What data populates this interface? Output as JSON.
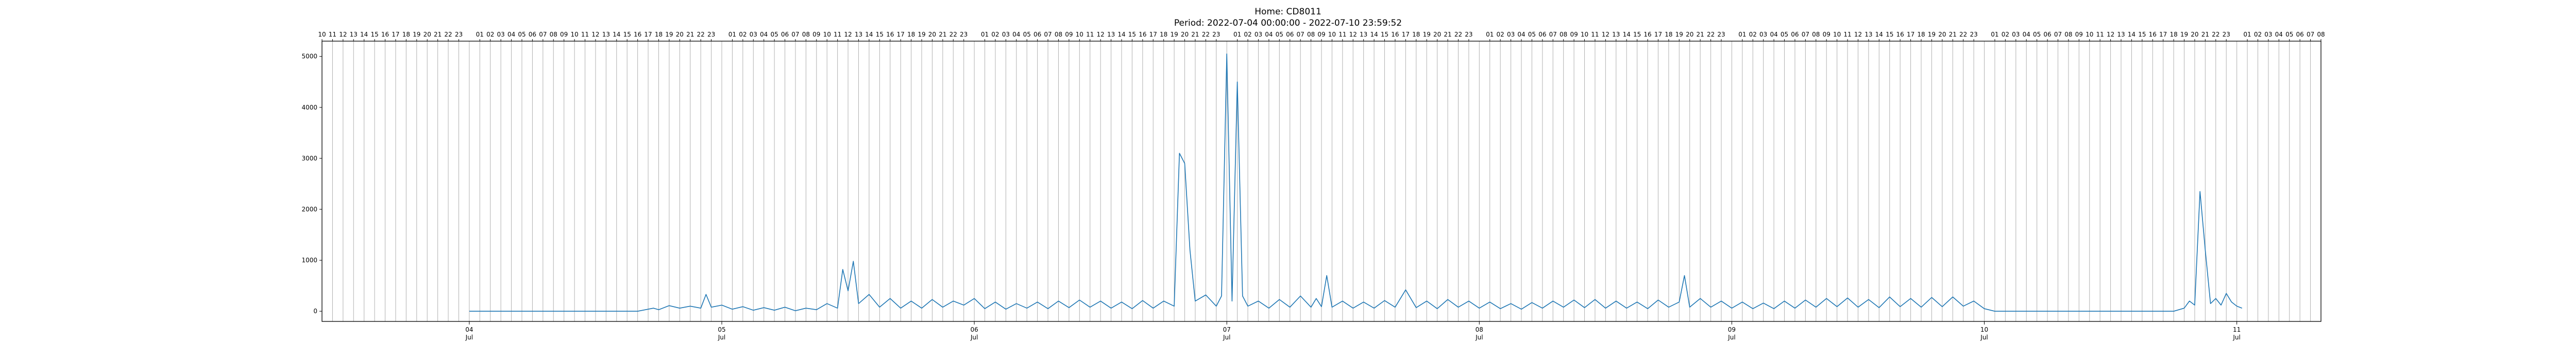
{
  "chart_data": {
    "type": "line",
    "title": "Home: CD8011",
    "subtitle": "Period: 2022-07-04 00:00:00 - 2022-07-10 23:59:52",
    "xlabel": "",
    "ylabel": "",
    "ylim": [
      -200,
      5300
    ],
    "yticks": [
      0,
      1000,
      2000,
      3000,
      4000,
      5000
    ],
    "xlim": [
      "2022-07-03 10:00",
      "2022-07-11 08:00"
    ],
    "x_major_ticks": [
      {
        "date": "2022-07-04",
        "day": "04",
        "month": "Jul"
      },
      {
        "date": "2022-07-05",
        "day": "05",
        "month": "Jul"
      },
      {
        "date": "2022-07-06",
        "day": "06",
        "month": "Jul"
      },
      {
        "date": "2022-07-07",
        "day": "07",
        "month": "Jul"
      },
      {
        "date": "2022-07-08",
        "day": "08",
        "month": "Jul"
      },
      {
        "date": "2022-07-09",
        "day": "09",
        "month": "Jul"
      },
      {
        "date": "2022-07-10",
        "day": "10",
        "month": "Jul"
      },
      {
        "date": "2022-07-11",
        "day": "11",
        "month": "Jul"
      }
    ],
    "top_hour_labels": [
      "16",
      "17",
      "18",
      "19",
      "20",
      "21",
      "22",
      "23",
      "01",
      "02",
      "03",
      "04",
      "05",
      "06",
      "07",
      "08",
      "09",
      "10",
      "11",
      "12",
      "13",
      "14",
      "15",
      "16",
      "17",
      "18",
      "19",
      "20",
      "21",
      "22",
      "23"
    ],
    "grid": "vertical hourly lines",
    "legend": "none",
    "colors": {
      "series": "#1f77b4",
      "grid": "#b0b0b0",
      "axis": "#000000"
    },
    "series": [
      {
        "points": [
          [
            "2022-07-04 00:00",
            0
          ],
          [
            "2022-07-04 06:00",
            0
          ],
          [
            "2022-07-04 12:00",
            0
          ],
          [
            "2022-07-04 16:00",
            0
          ],
          [
            "2022-07-04 17:00",
            40
          ],
          [
            "2022-07-04 17:30",
            60
          ],
          [
            "2022-07-04 18:00",
            30
          ],
          [
            "2022-07-04 19:00",
            110
          ],
          [
            "2022-07-04 20:00",
            60
          ],
          [
            "2022-07-04 21:00",
            100
          ],
          [
            "2022-07-04 22:00",
            60
          ],
          [
            "2022-07-04 22:30",
            330
          ],
          [
            "2022-07-04 23:00",
            80
          ],
          [
            "2022-07-05 00:00",
            120
          ],
          [
            "2022-07-05 01:00",
            40
          ],
          [
            "2022-07-05 02:00",
            90
          ],
          [
            "2022-07-05 03:00",
            20
          ],
          [
            "2022-07-05 04:00",
            70
          ],
          [
            "2022-07-05 05:00",
            20
          ],
          [
            "2022-07-05 06:00",
            80
          ],
          [
            "2022-07-05 07:00",
            10
          ],
          [
            "2022-07-05 08:00",
            60
          ],
          [
            "2022-07-05 09:00",
            30
          ],
          [
            "2022-07-05 10:00",
            150
          ],
          [
            "2022-07-05 11:00",
            60
          ],
          [
            "2022-07-05 11:30",
            820
          ],
          [
            "2022-07-05 12:00",
            400
          ],
          [
            "2022-07-05 12:30",
            980
          ],
          [
            "2022-07-05 13:00",
            150
          ],
          [
            "2022-07-05 14:00",
            330
          ],
          [
            "2022-07-05 15:00",
            80
          ],
          [
            "2022-07-05 16:00",
            250
          ],
          [
            "2022-07-05 17:00",
            60
          ],
          [
            "2022-07-05 18:00",
            200
          ],
          [
            "2022-07-05 19:00",
            60
          ],
          [
            "2022-07-05 20:00",
            230
          ],
          [
            "2022-07-05 21:00",
            80
          ],
          [
            "2022-07-05 22:00",
            200
          ],
          [
            "2022-07-05 23:00",
            120
          ],
          [
            "2022-07-06 00:00",
            250
          ],
          [
            "2022-07-06 01:00",
            50
          ],
          [
            "2022-07-06 02:00",
            180
          ],
          [
            "2022-07-06 03:00",
            40
          ],
          [
            "2022-07-06 04:00",
            150
          ],
          [
            "2022-07-06 05:00",
            60
          ],
          [
            "2022-07-06 06:00",
            180
          ],
          [
            "2022-07-06 07:00",
            50
          ],
          [
            "2022-07-06 08:00",
            200
          ],
          [
            "2022-07-06 09:00",
            70
          ],
          [
            "2022-07-06 10:00",
            220
          ],
          [
            "2022-07-06 11:00",
            80
          ],
          [
            "2022-07-06 12:00",
            200
          ],
          [
            "2022-07-06 13:00",
            60
          ],
          [
            "2022-07-06 14:00",
            180
          ],
          [
            "2022-07-06 15:00",
            50
          ],
          [
            "2022-07-06 16:00",
            210
          ],
          [
            "2022-07-06 17:00",
            60
          ],
          [
            "2022-07-06 18:00",
            200
          ],
          [
            "2022-07-06 19:00",
            100
          ],
          [
            "2022-07-06 19:30",
            3100
          ],
          [
            "2022-07-06 20:00",
            2900
          ],
          [
            "2022-07-06 20:30",
            1200
          ],
          [
            "2022-07-06 21:00",
            200
          ],
          [
            "2022-07-06 22:00",
            320
          ],
          [
            "2022-07-06 23:00",
            100
          ],
          [
            "2022-07-06 23:30",
            300
          ],
          [
            "2022-07-07 00:00",
            5050
          ],
          [
            "2022-07-07 00:30",
            200
          ],
          [
            "2022-07-07 01:00",
            4500
          ],
          [
            "2022-07-07 01:30",
            300
          ],
          [
            "2022-07-07 02:00",
            100
          ],
          [
            "2022-07-07 03:00",
            200
          ],
          [
            "2022-07-07 04:00",
            60
          ],
          [
            "2022-07-07 05:00",
            230
          ],
          [
            "2022-07-07 06:00",
            80
          ],
          [
            "2022-07-07 07:00",
            300
          ],
          [
            "2022-07-07 08:00",
            80
          ],
          [
            "2022-07-07 08:30",
            250
          ],
          [
            "2022-07-07 09:00",
            90
          ],
          [
            "2022-07-07 09:30",
            700
          ],
          [
            "2022-07-07 10:00",
            80
          ],
          [
            "2022-07-07 11:00",
            200
          ],
          [
            "2022-07-07 12:00",
            60
          ],
          [
            "2022-07-07 13:00",
            180
          ],
          [
            "2022-07-07 14:00",
            60
          ],
          [
            "2022-07-07 15:00",
            210
          ],
          [
            "2022-07-07 16:00",
            80
          ],
          [
            "2022-07-07 17:00",
            420
          ],
          [
            "2022-07-07 18:00",
            70
          ],
          [
            "2022-07-07 19:00",
            200
          ],
          [
            "2022-07-07 20:00",
            50
          ],
          [
            "2022-07-07 21:00",
            230
          ],
          [
            "2022-07-07 22:00",
            80
          ],
          [
            "2022-07-07 23:00",
            200
          ],
          [
            "2022-07-08 00:00",
            60
          ],
          [
            "2022-07-08 01:00",
            180
          ],
          [
            "2022-07-08 02:00",
            50
          ],
          [
            "2022-07-08 03:00",
            150
          ],
          [
            "2022-07-08 04:00",
            40
          ],
          [
            "2022-07-08 05:00",
            170
          ],
          [
            "2022-07-08 06:00",
            60
          ],
          [
            "2022-07-08 07:00",
            200
          ],
          [
            "2022-07-08 08:00",
            80
          ],
          [
            "2022-07-08 09:00",
            220
          ],
          [
            "2022-07-08 10:00",
            70
          ],
          [
            "2022-07-08 11:00",
            230
          ],
          [
            "2022-07-08 12:00",
            60
          ],
          [
            "2022-07-08 13:00",
            200
          ],
          [
            "2022-07-08 14:00",
            60
          ],
          [
            "2022-07-08 15:00",
            180
          ],
          [
            "2022-07-08 16:00",
            50
          ],
          [
            "2022-07-08 17:00",
            220
          ],
          [
            "2022-07-08 18:00",
            80
          ],
          [
            "2022-07-08 19:00",
            180
          ],
          [
            "2022-07-08 19:30",
            700
          ],
          [
            "2022-07-08 20:00",
            80
          ],
          [
            "2022-07-08 21:00",
            250
          ],
          [
            "2022-07-08 22:00",
            80
          ],
          [
            "2022-07-08 23:00",
            200
          ],
          [
            "2022-07-09 00:00",
            60
          ],
          [
            "2022-07-09 01:00",
            180
          ],
          [
            "2022-07-09 02:00",
            50
          ],
          [
            "2022-07-09 03:00",
            160
          ],
          [
            "2022-07-09 04:00",
            50
          ],
          [
            "2022-07-09 05:00",
            200
          ],
          [
            "2022-07-09 06:00",
            60
          ],
          [
            "2022-07-09 07:00",
            220
          ],
          [
            "2022-07-09 08:00",
            80
          ],
          [
            "2022-07-09 09:00",
            250
          ],
          [
            "2022-07-09 10:00",
            90
          ],
          [
            "2022-07-09 11:00",
            260
          ],
          [
            "2022-07-09 12:00",
            80
          ],
          [
            "2022-07-09 13:00",
            230
          ],
          [
            "2022-07-09 14:00",
            70
          ],
          [
            "2022-07-09 15:00",
            280
          ],
          [
            "2022-07-09 16:00",
            90
          ],
          [
            "2022-07-09 17:00",
            250
          ],
          [
            "2022-07-09 18:00",
            80
          ],
          [
            "2022-07-09 19:00",
            270
          ],
          [
            "2022-07-09 20:00",
            90
          ],
          [
            "2022-07-09 21:00",
            280
          ],
          [
            "2022-07-09 22:00",
            100
          ],
          [
            "2022-07-09 23:00",
            200
          ],
          [
            "2022-07-10 00:00",
            50
          ],
          [
            "2022-07-10 01:00",
            0
          ],
          [
            "2022-07-10 06:00",
            0
          ],
          [
            "2022-07-10 12:00",
            0
          ],
          [
            "2022-07-10 18:00",
            0
          ],
          [
            "2022-07-10 19:00",
            60
          ],
          [
            "2022-07-10 19:30",
            200
          ],
          [
            "2022-07-10 20:00",
            120
          ],
          [
            "2022-07-10 20:30",
            2350
          ],
          [
            "2022-07-10 21:00",
            1200
          ],
          [
            "2022-07-10 21:30",
            150
          ],
          [
            "2022-07-10 22:00",
            250
          ],
          [
            "2022-07-10 22:30",
            120
          ],
          [
            "2022-07-10 23:00",
            350
          ],
          [
            "2022-07-10 23:30",
            180
          ],
          [
            "2022-07-11 00:00",
            100
          ],
          [
            "2022-07-11 00:30",
            60
          ]
        ]
      }
    ]
  }
}
